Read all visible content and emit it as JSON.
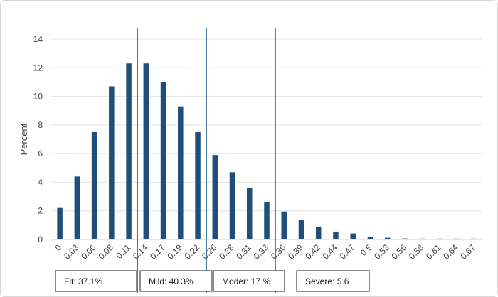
{
  "chart_data": {
    "type": "bar",
    "ylabel": "Percent",
    "ylim": [
      0,
      14
    ],
    "yticks": [
      0,
      2,
      4,
      6,
      8,
      10,
      12,
      14
    ],
    "categories": [
      "0",
      "0.03",
      "0.06",
      "0.08",
      "0.11",
      "0.14",
      "0.17",
      "0.19",
      "0.22",
      "0.25",
      "0.28",
      "0.31",
      "0.33",
      "0.36",
      "0.39",
      "0.42",
      "0.44",
      "0.47",
      "0.5",
      "0.53",
      "0.56",
      "0.58",
      "0.61",
      "0.64",
      "0.67"
    ],
    "values": [
      2.2,
      4.4,
      7.5,
      10.7,
      12.3,
      12.3,
      11.0,
      9.3,
      7.5,
      5.9,
      4.7,
      3.6,
      2.6,
      1.95,
      1.35,
      0.9,
      0.55,
      0.42,
      0.18,
      0.12,
      0.07,
      0.06,
      0.06,
      0.06,
      0.06
    ],
    "bar_color": "#1f4e79",
    "line_color": "#2e6b8a",
    "grid": true,
    "cutoff_lines": [
      0.125,
      0.235,
      0.345
    ],
    "category_labels": [
      {
        "text": "Fit: 37.1%"
      },
      {
        "text": "Mild: 40.3%"
      },
      {
        "text": "Moder: 17 %"
      },
      {
        "text": "Severe: 5.6"
      }
    ]
  }
}
